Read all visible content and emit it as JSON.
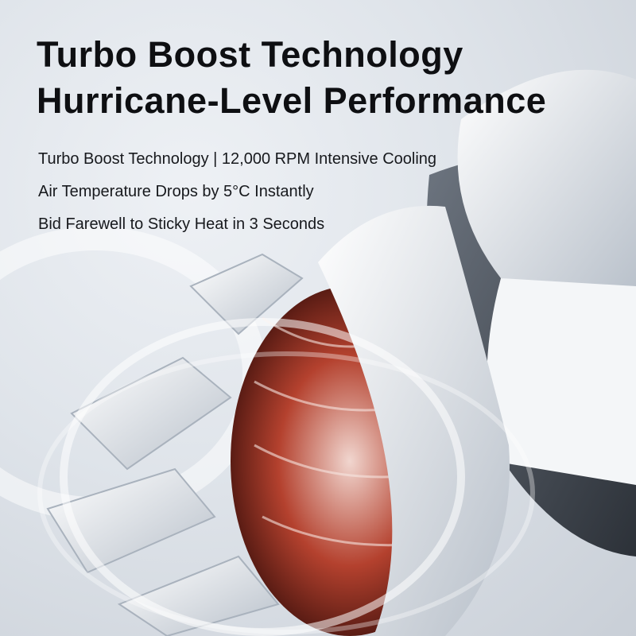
{
  "headline": {
    "line1": "Turbo Boost Technology",
    "line2": "Hurricane-Level Performance"
  },
  "features": [
    "Turbo Boost Technology | 12,000 RPM Intensive Cooling",
    "Air Temperature Drops by 5°C Instantly",
    "Bid Farewell to Sticky Heat in 3 Seconds"
  ],
  "colors": {
    "background": "#dfe4ea",
    "copper_coil": "#b4412e",
    "text": "#0e0f12"
  }
}
